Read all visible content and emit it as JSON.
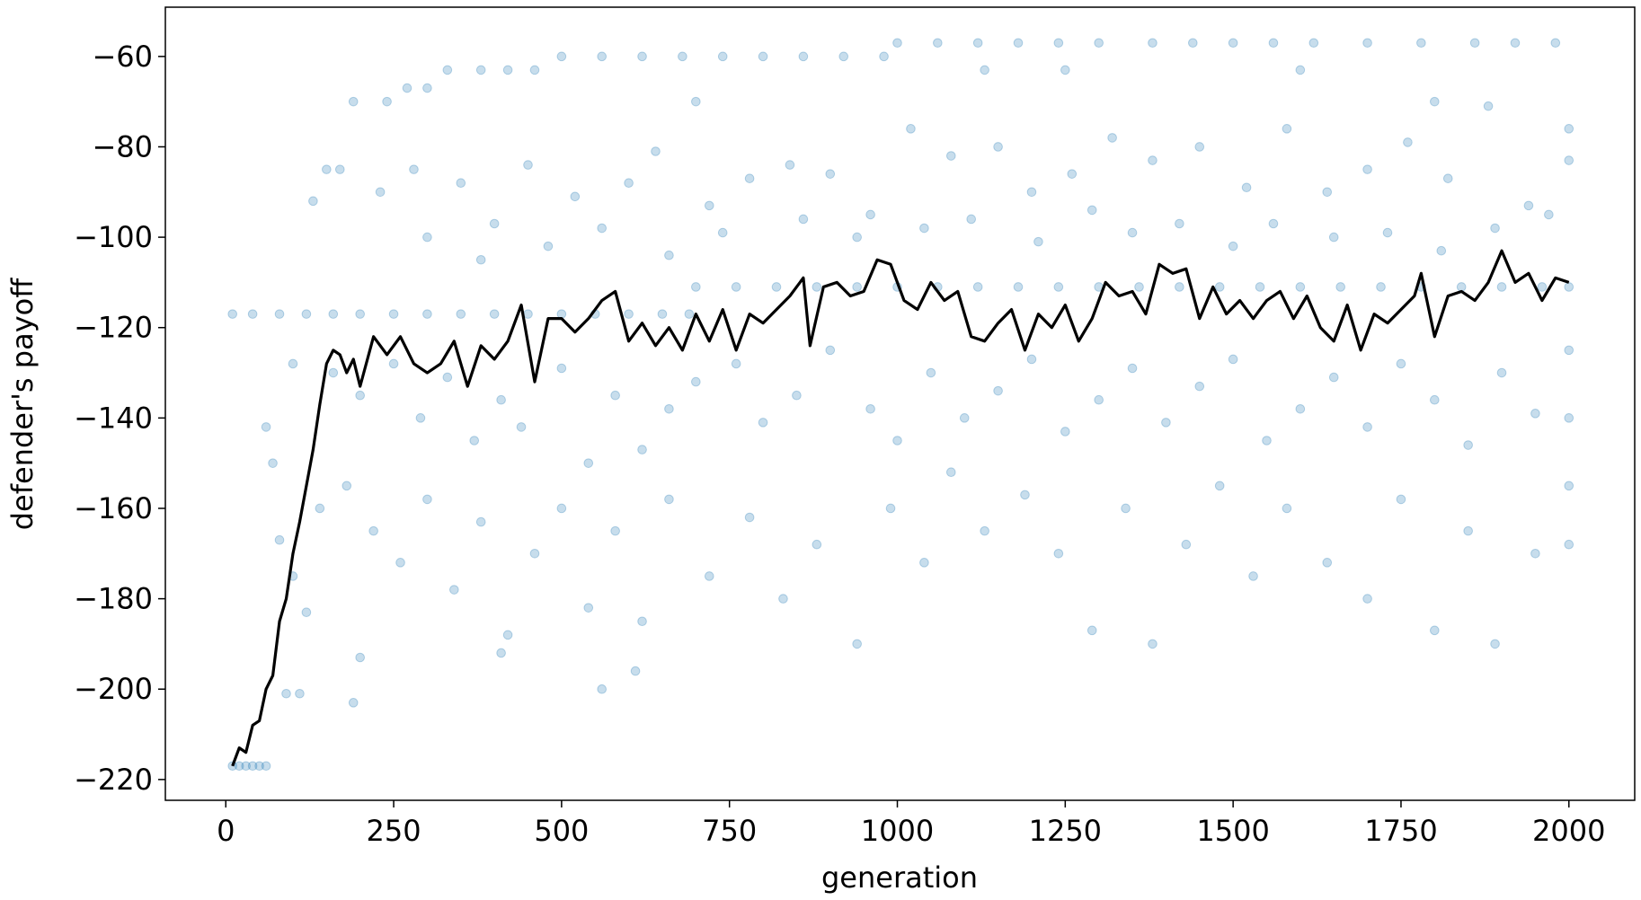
{
  "chart_data": {
    "type": "scatter",
    "xlabel": "generation",
    "ylabel": "defender's payoff",
    "xlim": [
      -90,
      2098
    ],
    "ylim": [
      -224.6,
      -49.1
    ],
    "xticks": [
      0,
      250,
      500,
      750,
      1000,
      1250,
      1500,
      1750,
      2000
    ],
    "yticks": [
      {
        "value": -220,
        "label": "−220"
      },
      {
        "value": -200,
        "label": "−200"
      },
      {
        "value": -180,
        "label": "−180"
      },
      {
        "value": -160,
        "label": "−160"
      },
      {
        "value": -140,
        "label": "−140"
      },
      {
        "value": -120,
        "label": "−120"
      },
      {
        "value": -100,
        "label": "−100"
      },
      {
        "value": -80,
        "label": "−80"
      },
      {
        "value": -60,
        "label": "−60"
      }
    ],
    "series": [
      {
        "type": "scatter",
        "color": "#1f77b4",
        "x": [
          10,
          20,
          30,
          40,
          50,
          60,
          10,
          40,
          80,
          120,
          160,
          200,
          250,
          300,
          350,
          400,
          450,
          500,
          550,
          600,
          650,
          690,
          700,
          760,
          820,
          880,
          940,
          1000,
          1060,
          1120,
          1180,
          1240,
          1300,
          1360,
          1420,
          1480,
          1540,
          1600,
          1660,
          1720,
          1780,
          1840,
          1900,
          1960,
          2000,
          1000,
          1060,
          1120,
          1180,
          1240,
          1300,
          1380,
          1440,
          1500,
          1560,
          1620,
          1700,
          1780,
          1860,
          1920,
          1980,
          500,
          560,
          620,
          680,
          740,
          800,
          860,
          920,
          980,
          330,
          380,
          420,
          460,
          1130,
          1250,
          1600,
          270,
          300,
          190,
          240,
          700,
          1800,
          150,
          170,
          130,
          230,
          280,
          350,
          400,
          450,
          520,
          600,
          640,
          720,
          780,
          840,
          900,
          960,
          1020,
          1080,
          1150,
          1200,
          1260,
          1320,
          1380,
          1450,
          1520,
          1580,
          1640,
          1700,
          1760,
          1820,
          1880,
          1940,
          2000,
          2000,
          300,
          380,
          480,
          560,
          660,
          740,
          860,
          940,
          1040,
          1110,
          1210,
          1290,
          1350,
          1420,
          1500,
          1560,
          1650,
          1730,
          1810,
          1890,
          1970,
          160,
          200,
          250,
          290,
          330,
          370,
          410,
          440,
          500,
          540,
          580,
          620,
          660,
          700,
          760,
          800,
          850,
          900,
          960,
          1000,
          1050,
          1100,
          1150,
          1200,
          1250,
          1300,
          1350,
          1400,
          1450,
          1500,
          1550,
          1600,
          1650,
          1700,
          1750,
          1800,
          1850,
          1900,
          1950,
          2000,
          2000,
          70,
          80,
          100,
          120,
          140,
          180,
          220,
          260,
          300,
          340,
          380,
          420,
          460,
          500,
          540,
          580,
          620,
          660,
          720,
          780,
          830,
          880,
          940,
          990,
          1040,
          1080,
          1130,
          1190,
          1240,
          1290,
          1340,
          1380,
          1430,
          1480,
          1530,
          1580,
          1640,
          1700,
          1750,
          1800,
          1850,
          1890,
          1950,
          2000,
          2000,
          90,
          110,
          190,
          410,
          560,
          200,
          610,
          60,
          100
        ],
        "y": [
          -217,
          -217,
          -217,
          -217,
          -217,
          -217,
          -117,
          -117,
          -117,
          -117,
          -117,
          -117,
          -117,
          -117,
          -117,
          -117,
          -117,
          -117,
          -117,
          -117,
          -117,
          -117,
          -111,
          -111,
          -111,
          -111,
          -111,
          -111,
          -111,
          -111,
          -111,
          -111,
          -111,
          -111,
          -111,
          -111,
          -111,
          -111,
          -111,
          -111,
          -111,
          -111,
          -111,
          -111,
          -111,
          -57,
          -57,
          -57,
          -57,
          -57,
          -57,
          -57,
          -57,
          -57,
          -57,
          -57,
          -57,
          -57,
          -57,
          -57,
          -57,
          -60,
          -60,
          -60,
          -60,
          -60,
          -60,
          -60,
          -60,
          -60,
          -63,
          -63,
          -63,
          -63,
          -63,
          -63,
          -63,
          -67,
          -67,
          -70,
          -70,
          -70,
          -70,
          -85,
          -85,
          -92,
          -90,
          -85,
          -88,
          -97,
          -84,
          -91,
          -88,
          -81,
          -93,
          -87,
          -84,
          -86,
          -95,
          -76,
          -82,
          -80,
          -90,
          -86,
          -78,
          -83,
          -80,
          -89,
          -76,
          -90,
          -85,
          -79,
          -87,
          -71,
          -93,
          -83,
          -76,
          -100,
          -105,
          -102,
          -98,
          -104,
          -99,
          -96,
          -100,
          -98,
          -96,
          -101,
          -94,
          -99,
          -97,
          -102,
          -97,
          -100,
          -99,
          -103,
          -98,
          -95,
          -130,
          -135,
          -128,
          -140,
          -131,
          -145,
          -136,
          -142,
          -129,
          -150,
          -135,
          -147,
          -138,
          -132,
          -128,
          -141,
          -135,
          -125,
          -138,
          -145,
          -130,
          -140,
          -134,
          -127,
          -143,
          -136,
          -129,
          -141,
          -133,
          -127,
          -145,
          -138,
          -131,
          -142,
          -128,
          -136,
          -146,
          -130,
          -139,
          -125,
          -140,
          -150,
          -167,
          -175,
          -183,
          -160,
          -155,
          -165,
          -172,
          -158,
          -178,
          -163,
          -188,
          -170,
          -160,
          -182,
          -165,
          -185,
          -158,
          -175,
          -162,
          -180,
          -168,
          -190,
          -160,
          -172,
          -152,
          -165,
          -157,
          -170,
          -187,
          -160,
          -190,
          -168,
          -155,
          -175,
          -160,
          -172,
          -180,
          -158,
          -187,
          -165,
          -190,
          -170,
          -155,
          -168,
          -201,
          -201,
          -203,
          -192,
          -200,
          -193,
          -196,
          -142,
          -128
        ]
      },
      {
        "type": "line",
        "color": "#000000",
        "x": [
          10,
          20,
          30,
          40,
          50,
          60,
          70,
          80,
          90,
          100,
          110,
          120,
          130,
          140,
          150,
          160,
          170,
          180,
          190,
          200,
          220,
          240,
          260,
          280,
          300,
          320,
          340,
          360,
          380,
          400,
          420,
          440,
          460,
          480,
          500,
          520,
          540,
          560,
          580,
          600,
          620,
          640,
          660,
          680,
          700,
          720,
          740,
          760,
          780,
          800,
          820,
          840,
          860,
          870,
          890,
          910,
          930,
          950,
          970,
          990,
          1010,
          1030,
          1050,
          1070,
          1090,
          1110,
          1130,
          1150,
          1170,
          1190,
          1210,
          1230,
          1250,
          1270,
          1290,
          1310,
          1330,
          1350,
          1370,
          1390,
          1410,
          1430,
          1450,
          1470,
          1490,
          1510,
          1530,
          1550,
          1570,
          1590,
          1610,
          1630,
          1650,
          1670,
          1690,
          1710,
          1730,
          1750,
          1770,
          1780,
          1800,
          1820,
          1840,
          1860,
          1880,
          1900,
          1920,
          1940,
          1960,
          1980,
          2000
        ],
        "y": [
          -217,
          -213,
          -214,
          -208,
          -207,
          -200,
          -197,
          -185,
          -180,
          -170,
          -163,
          -155,
          -147,
          -137,
          -128,
          -125,
          -126,
          -130,
          -127,
          -133,
          -122,
          -126,
          -122,
          -128,
          -130,
          -128,
          -123,
          -133,
          -124,
          -127,
          -123,
          -115,
          -132,
          -118,
          -118,
          -121,
          -118,
          -114,
          -112,
          -123,
          -119,
          -124,
          -120,
          -125,
          -117,
          -123,
          -116,
          -125,
          -117,
          -119,
          -116,
          -113,
          -109,
          -124,
          -111,
          -110,
          -113,
          -112,
          -105,
          -106,
          -114,
          -116,
          -110,
          -114,
          -112,
          -122,
          -123,
          -119,
          -116,
          -125,
          -117,
          -120,
          -115,
          -123,
          -118,
          -110,
          -113,
          -112,
          -117,
          -106,
          -108,
          -107,
          -118,
          -111,
          -117,
          -114,
          -118,
          -114,
          -112,
          -118,
          -113,
          -120,
          -123,
          -115,
          -125,
          -117,
          -119,
          -116,
          -113,
          -108,
          -122,
          -113,
          -112,
          -114,
          -110,
          -103,
          -110,
          -108,
          -114,
          -109,
          -110
        ]
      }
    ]
  }
}
